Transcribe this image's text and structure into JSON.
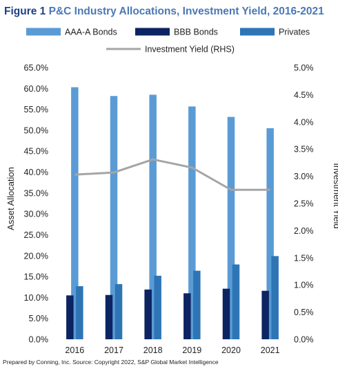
{
  "title": {
    "figure": "Figure 1",
    "text": "P&C Industry Allocations, Investment Yield, 2016-2021"
  },
  "source": "Prepared by Conning, Inc. Source: Copyright 2022, S&P Global Market Intelligence",
  "chart_data": {
    "type": "bar",
    "categories": [
      "2016",
      "2017",
      "2018",
      "2019",
      "2020",
      "2021"
    ],
    "series": [
      {
        "name": "AAA-A Bonds",
        "type": "bar",
        "axis": "left",
        "color": "#5b9bd5",
        "values": [
          60.3,
          58.2,
          58.5,
          55.7,
          53.2,
          50.5
        ]
      },
      {
        "name": "BBB Bonds",
        "type": "bar",
        "axis": "left",
        "color": "#0c2461",
        "values": [
          10.5,
          10.6,
          11.9,
          11.0,
          12.1,
          11.6
        ]
      },
      {
        "name": "Privates",
        "type": "bar",
        "axis": "left",
        "color": "#2e75b6",
        "values": [
          12.7,
          13.2,
          15.2,
          16.4,
          17.9,
          19.9
        ]
      },
      {
        "name": "Investment Yield (RHS)",
        "type": "line",
        "axis": "right",
        "color": "#a5a5a5",
        "values": [
          3.03,
          3.07,
          3.31,
          3.16,
          2.75,
          2.75
        ]
      }
    ],
    "ylabel": "Asset Allocation",
    "y2label": "Investment Yield",
    "ylim": [
      0,
      65
    ],
    "y2lim": [
      0,
      5
    ],
    "yticks": [
      "0.0%",
      "5.0%",
      "10.0%",
      "15.0%",
      "20.0%",
      "25.0%",
      "30.0%",
      "35.0%",
      "40.0%",
      "45.0%",
      "50.0%",
      "55.0%",
      "60.0%",
      "65.0%"
    ],
    "y2ticks": [
      "0.0%",
      "0.5%",
      "1.0%",
      "1.5%",
      "2.0%",
      "2.5%",
      "3.0%",
      "3.5%",
      "4.0%",
      "4.5%",
      "5.0%"
    ],
    "grid": false,
    "legend_position": "top"
  }
}
